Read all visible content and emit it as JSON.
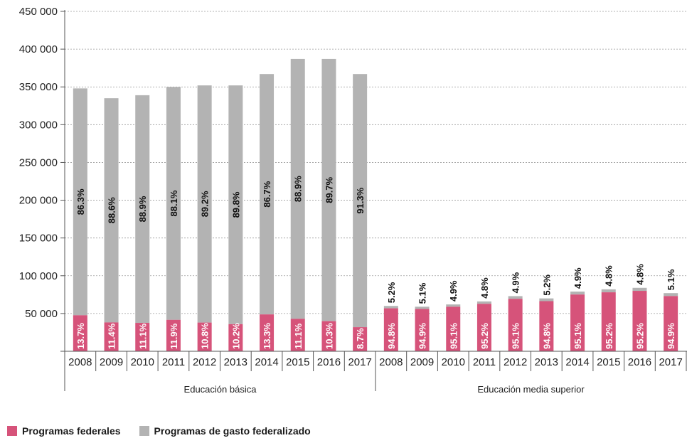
{
  "chart_data": {
    "type": "bar",
    "stacked": true,
    "ylim": [
      0,
      450000
    ],
    "yticks": [
      50000,
      100000,
      150000,
      200000,
      250000,
      300000,
      350000,
      400000,
      450000
    ],
    "ytick_labels": [
      "50 000",
      "100 000",
      "150 000",
      "200 000",
      "250 000",
      "300 000",
      "350 000",
      "400 000",
      "450 000"
    ],
    "grid": "horizontal-dashed",
    "legend_position": "bottom-left",
    "colors": {
      "federales": "#d6537a",
      "federalizado": "#b3b3b3"
    },
    "groups": [
      {
        "name": "Educación básica",
        "categories": [
          "2008",
          "2009",
          "2010",
          "2011",
          "2012",
          "2013",
          "2014",
          "2015",
          "2016",
          "2017"
        ],
        "totals": [
          348000,
          335000,
          339000,
          350000,
          352000,
          352000,
          367000,
          387000,
          387000,
          367000
        ],
        "series": [
          {
            "name": "Programas federales",
            "values": [
              47676,
              38190,
              37629,
              41650,
              38016,
              35904,
              48811,
              42957,
              39861,
              31929
            ],
            "labels": [
              "13.7%",
              "11.4%",
              "11.1%",
              "11.9%",
              "10.8%",
              "10.2%",
              "13.3%",
              "11.1%",
              "10.3%",
              "8.7%"
            ]
          },
          {
            "name": "Programas de gasto federalizado",
            "values": [
              300324,
              296810,
              301371,
              308350,
              313984,
              316096,
              318189,
              344043,
              347139,
              335071
            ],
            "labels": [
              "86.3%",
              "88.6%",
              "88.9%",
              "88.1%",
              "89.2%",
              "89.8%",
              "86.7%",
              "88.9%",
              "89.7%",
              "91.3%"
            ]
          }
        ]
      },
      {
        "name": "Educación media superior",
        "categories": [
          "2008",
          "2009",
          "2010",
          "2011",
          "2012",
          "2013",
          "2014",
          "2015",
          "2016",
          "2017"
        ],
        "totals": [
          60000,
          59000,
          62000,
          66000,
          73000,
          70000,
          79000,
          82000,
          84000,
          77000
        ],
        "series": [
          {
            "name": "Programas federales",
            "values": [
              56880,
              55991,
              58962,
              62832,
              69423,
              66360,
              75129,
              78064,
              79968,
              73073
            ],
            "labels": [
              "94.8%",
              "94.9%",
              "95.1%",
              "95.2%",
              "95.1%",
              "94.8%",
              "95.1%",
              "95.2%",
              "95.2%",
              "94.9%"
            ]
          },
          {
            "name": "Programas de gasto federalizado",
            "values": [
              3120,
              3009,
              3038,
              3168,
              3577,
              3640,
              3871,
              3936,
              4032,
              3927
            ],
            "labels": [
              "5.2%",
              "5.1%",
              "4.9%",
              "4.8%",
              "4.9%",
              "5.2%",
              "4.9%",
              "4.8%",
              "4.8%",
              "5.1%"
            ]
          }
        ]
      }
    ]
  },
  "legend": {
    "items": [
      {
        "label": "Programas federales",
        "color": "#d6537a"
      },
      {
        "label": "Programas de gasto federalizado",
        "color": "#b3b3b3"
      }
    ]
  }
}
